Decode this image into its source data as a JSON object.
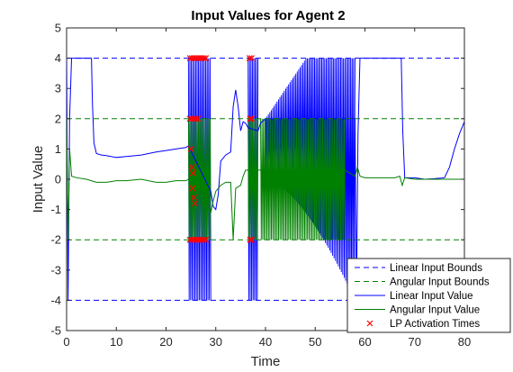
{
  "chart_data": {
    "type": "line",
    "title": "Input Values for Agent 2",
    "xlabel": "Time",
    "ylabel": "Input Value",
    "xlim": [
      0,
      80
    ],
    "ylim": [
      -5,
      5
    ],
    "xticks": [
      "0",
      "10",
      "20",
      "30",
      "40",
      "50",
      "60",
      "70",
      "80"
    ],
    "yticks": [
      "-5",
      "-4",
      "-3",
      "-2",
      "-1",
      "0",
      "1",
      "2",
      "3",
      "4",
      "5"
    ],
    "grid": false,
    "legend_position": "bottom-right",
    "legend": [
      {
        "label": "Linear Input Bounds",
        "color": "#0000ff",
        "style": "dashed"
      },
      {
        "label": "Angular Input Bounds",
        "color": "#008000",
        "style": "dashed"
      },
      {
        "label": "Linear Input Value",
        "color": "#0000ff",
        "style": "solid"
      },
      {
        "label": "Angular Input Value",
        "color": "#008000",
        "style": "solid"
      },
      {
        "label": "LP Activation Times",
        "color": "#ff0000",
        "style": "marker-x"
      }
    ],
    "series": [
      {
        "name": "Linear Input Bounds",
        "color": "#0000ff",
        "lines": [
          4,
          -4
        ]
      },
      {
        "name": "Angular Input Bounds",
        "color": "#008000",
        "lines": [
          2,
          -2
        ]
      },
      {
        "name": "Linear Input Value",
        "color": "#0000ff",
        "x": [
          0,
          0.3,
          0.6,
          1,
          5,
          5.2,
          5.5,
          6,
          7,
          8,
          10,
          12,
          15,
          18,
          20,
          22,
          24,
          24.5,
          29,
          29.5,
          30,
          30.5,
          31,
          32,
          33,
          33.5,
          34,
          34.5,
          35,
          35.5,
          36,
          36.5,
          38.5,
          39,
          40,
          58,
          58.3,
          58.6,
          59,
          60,
          62,
          64,
          66,
          67.3,
          67.6,
          68,
          70,
          72,
          74,
          76,
          77,
          78,
          79,
          80
        ],
        "y": [
          4,
          -4,
          2,
          4,
          4,
          2.5,
          1.2,
          0.85,
          0.8,
          0.78,
          0.72,
          0.75,
          0.8,
          0.9,
          0.95,
          1.0,
          1.05,
          1.1,
          -0.4,
          -0.9,
          -1.0,
          -0.5,
          0.6,
          0.8,
          0.9,
          2.4,
          2.95,
          2.4,
          1.6,
          1.9,
          1.85,
          1.7,
          1.6,
          1.85,
          2.0,
          2.0,
          -4,
          1.5,
          4,
          4,
          4,
          4,
          4,
          4,
          1.6,
          0.05,
          0.05,
          0.0,
          0.02,
          0.05,
          0.4,
          1.0,
          1.5,
          1.9
        ]
      },
      {
        "name": "Angular Input Value",
        "color": "#008000",
        "x": [
          0,
          0.3,
          0.6,
          1,
          2,
          4,
          6,
          8,
          10,
          12,
          15,
          18,
          20,
          22,
          24,
          24.5,
          29,
          29.5,
          30,
          31,
          32,
          33,
          33.5,
          34,
          35,
          35.5,
          36,
          39,
          40,
          56,
          58,
          58.5,
          59,
          60,
          62,
          64,
          66,
          67,
          67.5,
          68,
          70,
          72,
          74,
          76,
          78,
          80
        ],
        "y": [
          2,
          -2,
          1,
          0.1,
          0.05,
          0.0,
          -0.1,
          -0.1,
          -0.05,
          -0.05,
          0.0,
          -0.1,
          -0.1,
          -0.05,
          -0.05,
          0.0,
          -1.1,
          -0.7,
          -0.4,
          -0.2,
          -0.1,
          -0.1,
          -2.0,
          -0.3,
          -0.2,
          0.1,
          0.3,
          0.3,
          0.3,
          0.3,
          0.1,
          0.4,
          0.1,
          0.05,
          0.05,
          0.05,
          0.05,
          0.1,
          -0.2,
          0.05,
          0.0,
          0.0,
          0.0,
          0.0,
          0.0,
          0.0
        ]
      },
      {
        "name": "LP Activation Times",
        "color": "#ff0000",
        "points": [
          [
            24.8,
            4
          ],
          [
            25.2,
            4
          ],
          [
            25.6,
            4
          ],
          [
            26.0,
            4
          ],
          [
            26.4,
            4
          ],
          [
            26.8,
            4
          ],
          [
            27.2,
            4
          ],
          [
            27.6,
            4
          ],
          [
            28.0,
            4
          ],
          [
            24.8,
            2
          ],
          [
            25.2,
            2
          ],
          [
            25.6,
            2
          ],
          [
            26.0,
            2
          ],
          [
            26.4,
            2
          ],
          [
            25.0,
            1.0
          ],
          [
            25.2,
            0.4
          ],
          [
            25.4,
            0.2
          ],
          [
            25.3,
            -0.3
          ],
          [
            25.6,
            -0.6
          ],
          [
            25.8,
            -0.8
          ],
          [
            24.8,
            -2
          ],
          [
            25.2,
            -2
          ],
          [
            25.6,
            -2
          ],
          [
            26.0,
            -2
          ],
          [
            26.4,
            -2
          ],
          [
            26.8,
            -2
          ],
          [
            27.2,
            -2
          ],
          [
            27.6,
            -2
          ],
          [
            28.0,
            -2
          ],
          [
            36.8,
            4
          ],
          [
            37.2,
            4
          ],
          [
            36.9,
            2
          ],
          [
            37.2,
            2
          ],
          [
            36.9,
            -2
          ],
          [
            37.2,
            -2
          ]
        ]
      }
    ],
    "oscillation_bands": [
      {
        "series": "Linear Input Value",
        "x": [
          24.5,
          29
        ],
        "low": -4,
        "high": 4
      },
      {
        "series": "Linear Input Value",
        "x": [
          36.5,
          38.5
        ],
        "low": -4,
        "high": 4
      },
      {
        "series": "Linear Input Value",
        "x": [
          40,
          58
        ],
        "low_start": 0,
        "low_end": -4,
        "high_start": 2,
        "high_end": 4
      },
      {
        "series": "Angular Input Value",
        "x": [
          24.5,
          29
        ],
        "low": -2,
        "high": 2
      },
      {
        "series": "Angular Input Value",
        "x": [
          36.5,
          38.5
        ],
        "low": -2,
        "high": 2
      },
      {
        "series": "Angular Input Value",
        "x": [
          39,
          56
        ],
        "low": -2,
        "high": 2
      }
    ]
  }
}
